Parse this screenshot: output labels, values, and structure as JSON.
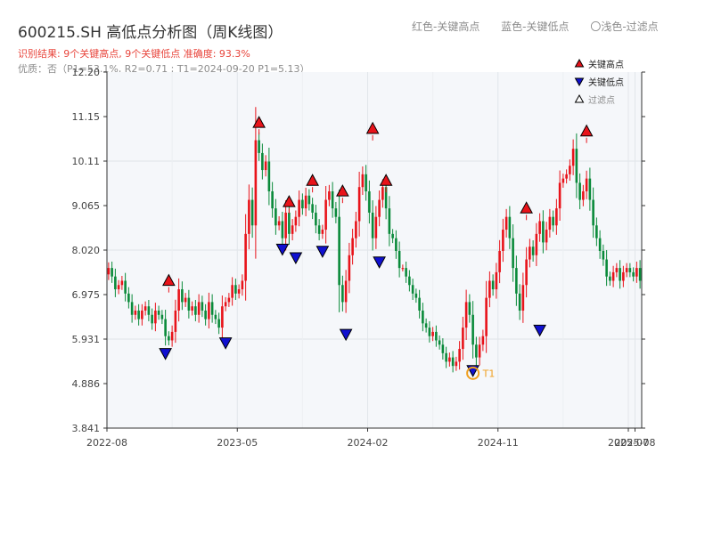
{
  "header": {
    "title": "600215.SH 高低点分析图（周K线图）",
    "result_line": "识别结果: 9个关键高点, 9个关键低点  准确度: 93.3%",
    "detail_line": "优质：否（P1=53.1%, R2=0.71 ; T1=2024-09-20 P1=5.13）"
  },
  "top_legend": {
    "red": "红色-关键高点",
    "blue": "蓝色-关键低点",
    "light": "〇浅色-过滤点"
  },
  "chart_data": {
    "type": "candlestick",
    "y_ticks": [
      "3.841",
      "4.886",
      "5.931",
      "6.975",
      "8.020",
      "9.065",
      "10.11",
      "11.15",
      "12.20"
    ],
    "ylim": [
      3.841,
      12.2
    ],
    "x_ticks": [
      {
        "label": "2022-08",
        "index": 0
      },
      {
        "label": "2023-05",
        "index": 39
      },
      {
        "label": "2024-02",
        "index": 78
      },
      {
        "label": "2024-11",
        "index": 117
      },
      {
        "label": "2025-07",
        "index": 156
      },
      {
        "label": "2025-08",
        "index": 158
      }
    ],
    "grid": true,
    "legend": {
      "placement": "top-right",
      "entries": [
        {
          "label": "关键高点",
          "marker": "up-triangle",
          "color": "#e8131a"
        },
        {
          "label": "关键低点",
          "marker": "down-triangle",
          "color": "#1010d0"
        },
        {
          "label": "过滤点",
          "marker": "up-triangle-outline",
          "color": "#ffffff"
        }
      ]
    },
    "colors": {
      "up": "#e8131a",
      "down": "#0a8a3a",
      "high": "#e8131a",
      "low": "#1010d0",
      "t1": "#f0a020",
      "t1_text": "#f0a020"
    },
    "t1": {
      "label": "T1",
      "date": "2024-09-20",
      "index": 109,
      "value": 5.13
    },
    "close": [
      7.6,
      7.4,
      7.1,
      7.2,
      7.3,
      7.0,
      6.8,
      6.5,
      6.6,
      6.4,
      6.6,
      6.7,
      6.5,
      6.3,
      6.6,
      6.5,
      6.4,
      6.0,
      5.9,
      6.1,
      6.6,
      7.1,
      6.8,
      6.9,
      6.6,
      6.7,
      6.5,
      6.8,
      6.6,
      6.4,
      6.8,
      6.5,
      6.4,
      6.2,
      6.7,
      6.8,
      6.9,
      7.2,
      7.0,
      7.1,
      7.3,
      8.4,
      9.2,
      8.6,
      10.6,
      10.3,
      9.9,
      10.1,
      9.4,
      9.0,
      8.6,
      8.7,
      8.3,
      8.9,
      8.4,
      8.6,
      8.8,
      9.2,
      9.0,
      9.3,
      9.1,
      8.9,
      8.6,
      8.4,
      8.5,
      9.2,
      9.4,
      9.0,
      8.8,
      7.2,
      6.8,
      7.3,
      7.9,
      8.3,
      8.7,
      9.5,
      9.8,
      9.4,
      8.9,
      8.3,
      8.8,
      9.2,
      9.5,
      9.0,
      8.4,
      8.3,
      8.0,
      7.6,
      7.6,
      7.4,
      7.2,
      7.0,
      6.9,
      6.6,
      6.3,
      6.2,
      6.0,
      6.1,
      5.9,
      5.8,
      5.6,
      5.4,
      5.5,
      5.3,
      5.4,
      5.7,
      6.2,
      6.8,
      6.5,
      5.8,
      5.5,
      5.8,
      6.0,
      6.9,
      7.3,
      7.1,
      7.5,
      8.0,
      8.5,
      8.8,
      8.3,
      7.6,
      7.0,
      6.6,
      7.2,
      7.8,
      8.1,
      7.9,
      8.4,
      8.7,
      8.2,
      8.5,
      8.8,
      8.6,
      9.0,
      9.6,
      9.7,
      9.8,
      10.0,
      10.4,
      9.6,
      9.2,
      9.4,
      9.7,
      9.2,
      8.6,
      8.3,
      8.0,
      7.8,
      7.4,
      7.3,
      7.5,
      7.6,
      7.3,
      7.5,
      7.6,
      7.5,
      7.4,
      7.6,
      7.3
    ],
    "key_highs": [
      {
        "index": 18,
        "value": 7.15
      },
      {
        "index": 45,
        "value": 10.86
      },
      {
        "index": 54,
        "value": 9.0
      },
      {
        "index": 61,
        "value": 9.5
      },
      {
        "index": 70,
        "value": 9.25
      },
      {
        "index": 79,
        "value": 10.72
      },
      {
        "index": 83,
        "value": 9.5
      },
      {
        "index": 125,
        "value": 8.85
      },
      {
        "index": 143,
        "value": 10.66
      }
    ],
    "key_lows": [
      {
        "index": 17,
        "value": 5.75
      },
      {
        "index": 35,
        "value": 6.0
      },
      {
        "index": 52,
        "value": 8.2
      },
      {
        "index": 56,
        "value": 8.0
      },
      {
        "index": 64,
        "value": 8.15
      },
      {
        "index": 71,
        "value": 6.2
      },
      {
        "index": 81,
        "value": 7.9
      },
      {
        "index": 109,
        "value": 5.35
      },
      {
        "index": 129,
        "value": 6.3
      }
    ]
  }
}
